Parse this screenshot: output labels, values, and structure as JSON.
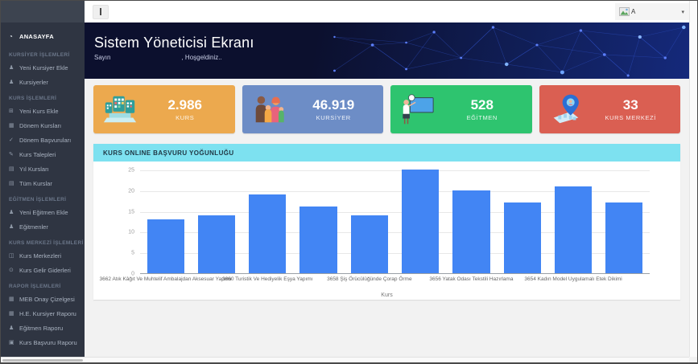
{
  "colors": {
    "sidebar_bg": "#2f3542",
    "banner_bg": "#0c102e",
    "panel_header_bg": "#7de1f0",
    "body_bg": "#f2f2f2",
    "bar_color": "#4285f4"
  },
  "topbar": {
    "user_dropdown": {
      "alt_text": "A",
      "caret": "▾"
    }
  },
  "banner": {
    "title": "Sistem Yöneticisi Ekranı",
    "greeting_prefix": "Sayın",
    "greeting_suffix": ", Hoşgeldiniz.."
  },
  "icons": {
    "home-icon": "◔",
    "user-add-icon": "♟",
    "users-icon": "♟",
    "plus-square-icon": "⊞",
    "grid-icon": "▦",
    "check-icon": "✓",
    "pencil-icon": "✎",
    "table-icon": "▤",
    "building-icon": "◫",
    "money-icon": "⊙",
    "calendar-icon": "▦",
    "report-icon": "▣"
  },
  "sidebar": {
    "home": {
      "icon": "home-icon",
      "label": "ANASAYFA"
    },
    "sections": [
      {
        "header": "KURSİYER İŞLEMLERİ",
        "items": [
          {
            "icon": "user-add-icon",
            "label": "Yeni Kursiyer Ekle"
          },
          {
            "icon": "users-icon",
            "label": "Kursiyerler"
          }
        ]
      },
      {
        "header": "KURS İŞLEMLERİ",
        "items": [
          {
            "icon": "plus-square-icon",
            "label": "Yeni Kurs Ekle"
          },
          {
            "icon": "grid-icon",
            "label": "Dönem Kursları"
          },
          {
            "icon": "check-icon",
            "label": "Dönem Başvuruları"
          },
          {
            "icon": "pencil-icon",
            "label": "Kurs Talepleri"
          },
          {
            "icon": "table-icon",
            "label": "Yıl Kursları"
          },
          {
            "icon": "table-icon",
            "label": "Tüm Kurslar"
          }
        ]
      },
      {
        "header": "EĞİTMEN İŞLEMLERİ",
        "items": [
          {
            "icon": "user-add-icon",
            "label": "Yeni Eğitmen Ekle"
          },
          {
            "icon": "users-icon",
            "label": "Eğitmenler"
          }
        ]
      },
      {
        "header": "KURS MERKEZİ İŞLEMLERİ",
        "items": [
          {
            "icon": "building-icon",
            "label": "Kurs Merkezleri"
          },
          {
            "icon": "money-icon",
            "label": "Kurs Gelir Giderleri"
          }
        ]
      },
      {
        "header": "RAPOR İŞLEMLERİ",
        "items": [
          {
            "icon": "calendar-icon",
            "label": "MEB Onay Çizelgesi"
          },
          {
            "icon": "calendar-icon",
            "label": "H.E. Kursiyer Raporu"
          },
          {
            "icon": "users-icon",
            "label": "Eğitmen Raporu"
          },
          {
            "icon": "report-icon",
            "label": "Kurs Başvuru Raporu"
          }
        ]
      }
    ]
  },
  "stats": [
    {
      "value": "2.986",
      "label": "KURS",
      "color": "#eca94e",
      "icon": "computer-illustration"
    },
    {
      "value": "46.919",
      "label": "KURSİYER",
      "color": "#6d8dc6",
      "icon": "people-illustration"
    },
    {
      "value": "528",
      "label": "EĞİTMEN",
      "color": "#2ec46f",
      "icon": "teacher-illustration"
    },
    {
      "value": "33",
      "label": "KURS MERKEZİ",
      "color": "#da5f52",
      "icon": "map-pin-illustration"
    }
  ],
  "chart_panel": {
    "title": "KURS ONLINE BAŞVURU YOĞUNLUĞU"
  },
  "chart_data": {
    "type": "bar",
    "title": "KURS ONLINE BAŞVURU YOĞUNLUĞU",
    "categories": [
      "3662 Atık Kâğıt Ve Muhtelif Ambalajdan Aksesuar Yapımı",
      "",
      "3660 Turistik Ve Hediyelik Eşya Yapımı",
      "",
      "3658 Şiş Örücülüğünde Çorap Örme",
      "",
      "3656 Yatak Odası Tekstili Hazırlama",
      "",
      "3654 Kadın Model Uygulamalı Etek Dikimi",
      ""
    ],
    "values": [
      13,
      14,
      19,
      16,
      14,
      25,
      20,
      17,
      21,
      17
    ],
    "xlabel": "Kurs",
    "ylabel": "",
    "ylim": [
      0,
      25
    ],
    "ytick_step": 5,
    "grid": true,
    "legend": "none",
    "bar_color": "#4285f4"
  }
}
